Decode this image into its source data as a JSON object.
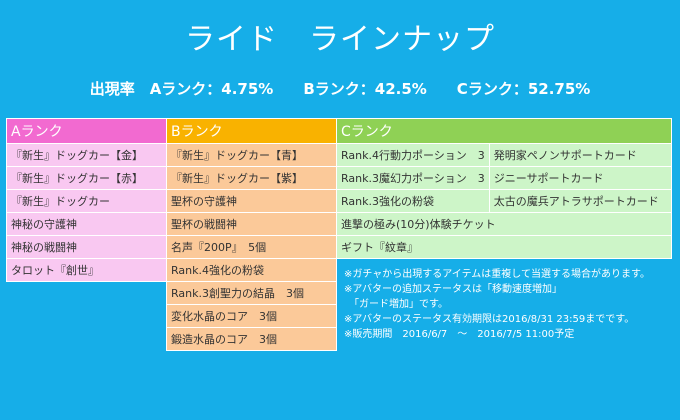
{
  "title": "ライド　ラインナップ",
  "rates": "出現率　Aランク：4.75%　　Bランク：42.5%　　Cランク：52.75%",
  "headers": {
    "a": "Aランク",
    "b": "Bランク",
    "c": "Cランク"
  },
  "rows": [
    {
      "a": "『新生』ドッグカー【金】",
      "b": "『新生』ドッグカー【青】",
      "c1": "Rank.4行動力ポーション　3",
      "c2": "発明家ペノンサポートカード"
    },
    {
      "a": "『新生』ドッグカー【赤】",
      "b": "『新生』ドッグカー【紫】",
      "c1": "Rank.3魔幻力ポーション　3",
      "c2": "ジニーサポートカード"
    },
    {
      "a": "『新生』ドッグカー",
      "b": "聖杯の守護神",
      "c1": "Rank.3強化の粉袋",
      "c2": "太古の魔兵アトラサポートカード"
    },
    {
      "a": "神秘の守護神",
      "b": "聖杯の戦闘神",
      "c": "進撃の極み(10分)体験チケット"
    },
    {
      "a": "神秘の戦闘神",
      "b": "名声『200P』　5個",
      "c": "ギフト『紋章』"
    },
    {
      "a": "タロット『創世』",
      "b": "Rank.4強化の粉袋"
    },
    {
      "b": "Rank.3創聖力の結晶　3個"
    },
    {
      "b": "変化水晶のコア　3個"
    },
    {
      "b": "鍛造水晶のコア　3個"
    }
  ],
  "notes": "※ガチャから出現するアイテムは重複して当選する場合があります。\n※アバターの追加ステータスは「移動速度増加」\n　「ガード増加」です。\n※アバターのステータス有効期限は2016/8/31 23:59までです。\n※販売期間　2016/6/7　～　2016/7/5 11:00予定"
}
